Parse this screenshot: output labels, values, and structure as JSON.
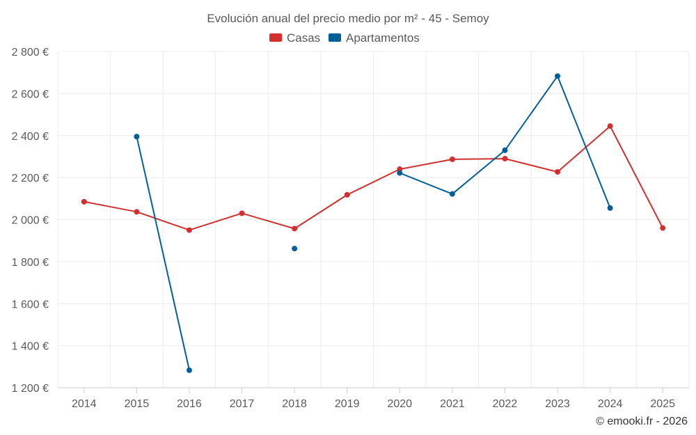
{
  "chart_data": {
    "type": "line",
    "title": "Evolución anual del precio medio por m² - 45 - Semoy",
    "xlabel": "",
    "ylabel": "",
    "categories": [
      "2014",
      "2015",
      "2016",
      "2017",
      "2018",
      "2019",
      "2020",
      "2021",
      "2022",
      "2023",
      "2024",
      "2025"
    ],
    "ylim": [
      1200,
      2800
    ],
    "yticks": [
      1200,
      1400,
      1600,
      1800,
      2000,
      2200,
      2400,
      2600,
      2800
    ],
    "ytick_labels": [
      "1 200 €",
      "1 400 €",
      "1 600 €",
      "1 800 €",
      "2 000 €",
      "2 200 €",
      "2 400 €",
      "2 600 €",
      "2 800 €"
    ],
    "grid": true,
    "legend_position": "top-center",
    "series": [
      {
        "name": "Casas",
        "color": "#d32f2f",
        "values": [
          2085,
          2037,
          1950,
          2030,
          1957,
          2118,
          2240,
          2287,
          2290,
          2227,
          2445,
          1960
        ]
      },
      {
        "name": "Apartamentos",
        "color": "#005f99",
        "values": [
          null,
          2395,
          1283,
          null,
          1862,
          null,
          2222,
          2122,
          2330,
          2683,
          2055,
          null
        ]
      }
    ],
    "credit": "© emooki.fr - 2026"
  }
}
